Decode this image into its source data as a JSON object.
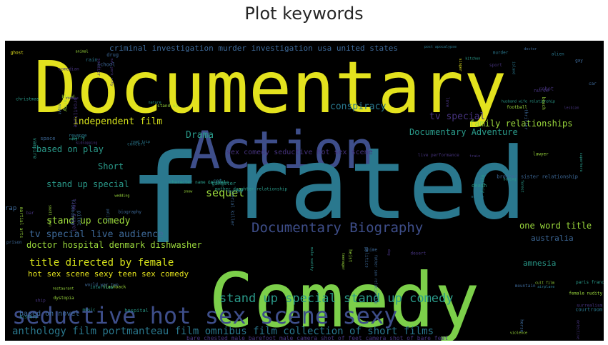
{
  "title": "Plot keywords",
  "words": [
    {
      "text": "Documentary",
      "color": "#e3e21e"
    },
    {
      "text": "Action",
      "color": "#3e4e8a"
    },
    {
      "text": "Comedy",
      "color": "#7ccf4a"
    },
    {
      "text": "rated",
      "color": "#2a788e"
    },
    {
      "text": "f",
      "color": "#2a788e"
    },
    {
      "text": "seductive hot sex scene sexy",
      "color": "#3e4e8a"
    },
    {
      "text": "anthology film portmanteau film omnibus film collection of short films",
      "color": "#2a788e"
    },
    {
      "text": "Documentary Biography",
      "color": "#3e4e8a"
    },
    {
      "text": "stand up special stand up comedy",
      "color": "#2a9a8a"
    },
    {
      "text": "title directed by female",
      "color": "#d6e21a"
    },
    {
      "text": "independent film",
      "color": "#d6e21a"
    },
    {
      "text": "sequel",
      "color": "#9bd93c"
    },
    {
      "text": "Drama",
      "color": "#2a9a8a"
    },
    {
      "text": "based on play",
      "color": "#2a9a8a"
    },
    {
      "text": "stand up special",
      "color": "#2a9a8a"
    },
    {
      "text": "stand up comedy",
      "color": "#9bd93c"
    },
    {
      "text": "tv special live audience",
      "color": "#3e6a9a"
    },
    {
      "text": "doctor hospital denmark dishwasher",
      "color": "#9bd93c"
    },
    {
      "text": "hot sex scene sexy teen sex comedy",
      "color": "#e3e21e"
    },
    {
      "text": "based on novel",
      "color": "#3e6a9a"
    },
    {
      "text": "Short",
      "color": "#2a9a8a"
    },
    {
      "text": "conspiracy",
      "color": "#2a788e"
    },
    {
      "text": "tv special",
      "color": "#46337e"
    },
    {
      "text": "family relationships",
      "color": "#9bd93c"
    },
    {
      "text": "Documentary Adventure",
      "color": "#2a9a8a"
    },
    {
      "text": "sex comedy seductive hot sex scene",
      "color": "#46337e"
    },
    {
      "text": "one word title",
      "color": "#9bd93c"
    },
    {
      "text": "australia",
      "color": "#3e6a9a"
    },
    {
      "text": "amnesia",
      "color": "#2a9a8a"
    },
    {
      "text": "criminal investigation murder investigation usa united states",
      "color": "#3e6a9a"
    },
    {
      "text": "rap",
      "color": "#3e6a9a"
    },
    {
      "text": "bare chested male barefoot male camera shot of feet camera shot of bare feet",
      "color": "#46337e"
    },
    {
      "text": "prison",
      "color": "#3e6a9a"
    },
    {
      "text": "paris france",
      "color": "#2a9a8a"
    },
    {
      "text": "live performance",
      "color": "#46337e"
    },
    {
      "text": "character name in title",
      "color": "#2a9a8a"
    },
    {
      "text": "friendship",
      "color": "#3e6a9a"
    },
    {
      "text": "flashback",
      "color": "#9bd93c"
    },
    {
      "text": "murder",
      "color": "#2a788e"
    },
    {
      "text": "love",
      "color": "#46337e"
    },
    {
      "text": "death",
      "color": "#2a9a8a"
    },
    {
      "text": "violence",
      "color": "#9bd93c"
    },
    {
      "text": "father son relationship",
      "color": "#3e6a9a"
    },
    {
      "text": "mother daughter relationship",
      "color": "#2a9a8a"
    },
    {
      "text": "new york city",
      "color": "#46337e"
    },
    {
      "text": "blood",
      "color": "#9bd93c"
    },
    {
      "text": "revenge",
      "color": "#2a788e"
    },
    {
      "text": "police",
      "color": "#3e6a9a"
    },
    {
      "text": "music",
      "color": "#2a9a8a"
    },
    {
      "text": "singer",
      "color": "#e3e21e"
    },
    {
      "text": "husband wife relationship",
      "color": "#2a9a8a"
    },
    {
      "text": "brother sister relationship",
      "color": "#3e6a9a"
    },
    {
      "text": "surrealism",
      "color": "#46337e"
    },
    {
      "text": "teenager",
      "color": "#9bd93c"
    },
    {
      "text": "dancing",
      "color": "#2a788e"
    },
    {
      "text": "school",
      "color": "#3e6a9a"
    },
    {
      "text": "christmas",
      "color": "#2a9a8a"
    },
    {
      "text": "kidnapping",
      "color": "#46337e"
    },
    {
      "text": "wedding",
      "color": "#9bd93c"
    },
    {
      "text": "interview",
      "color": "#2a9a8a"
    },
    {
      "text": "gay",
      "color": "#3e6a9a"
    },
    {
      "text": "lesbian",
      "color": "#46337e"
    },
    {
      "text": "nudity",
      "color": "#2a788e"
    },
    {
      "text": "female nudity",
      "color": "#9bd93c"
    },
    {
      "text": "male nudity",
      "color": "#2a9a8a"
    },
    {
      "text": "serial killer",
      "color": "#3e6a9a"
    },
    {
      "text": "ghost",
      "color": "#e3e21e"
    },
    {
      "text": "zombie",
      "color": "#46337e"
    },
    {
      "text": "vampire",
      "color": "#2a9a8a"
    },
    {
      "text": "martial arts",
      "color": "#9bd93c"
    },
    {
      "text": "world war two",
      "color": "#3e6a9a"
    },
    {
      "text": "alien",
      "color": "#2a788e"
    },
    {
      "text": "robot",
      "color": "#46337e"
    },
    {
      "text": "superhero",
      "color": "#2a9a8a"
    },
    {
      "text": "cult film",
      "color": "#9bd93c"
    },
    {
      "text": "anime",
      "color": "#3e6a9a"
    },
    {
      "text": "cartoon",
      "color": "#2a9a8a"
    },
    {
      "text": "comedian",
      "color": "#46337e"
    },
    {
      "text": "stand up",
      "color": "#9bd93c"
    },
    {
      "text": "concert",
      "color": "#2a788e"
    },
    {
      "text": "biography",
      "color": "#3e6a9a"
    },
    {
      "text": "history",
      "color": "#2a9a8a"
    },
    {
      "text": "sport",
      "color": "#46337e"
    },
    {
      "text": "football",
      "color": "#9bd93c"
    },
    {
      "text": "boxing",
      "color": "#2a9a8a"
    },
    {
      "text": "horse",
      "color": "#3e6a9a"
    },
    {
      "text": "dog",
      "color": "#46337e"
    },
    {
      "text": "cat",
      "color": "#2a788e"
    },
    {
      "text": "animal",
      "color": "#9bd93c"
    },
    {
      "text": "nature",
      "color": "#2a9a8a"
    },
    {
      "text": "space",
      "color": "#3e6a9a"
    },
    {
      "text": "time travel",
      "color": "#46337e"
    },
    {
      "text": "dystopia",
      "color": "#9bd93c"
    },
    {
      "text": "post apocalypse",
      "color": "#2a788e"
    },
    {
      "text": "thriller",
      "color": "#3e6a9a"
    },
    {
      "text": "mystery",
      "color": "#2a9a8a"
    },
    {
      "text": "detective",
      "color": "#46337e"
    },
    {
      "text": "heist",
      "color": "#9bd93c"
    },
    {
      "text": "gangster",
      "color": "#2a9a8a"
    },
    {
      "text": "drug",
      "color": "#3e6a9a"
    },
    {
      "text": "prostitute",
      "color": "#46337e"
    },
    {
      "text": "road trip",
      "color": "#2a788e"
    },
    {
      "text": "small town",
      "color": "#9bd93c"
    },
    {
      "text": "hospital",
      "color": "#2a9a8a"
    },
    {
      "text": "doctor",
      "color": "#3e6a9a"
    },
    {
      "text": "nurse",
      "color": "#46337e"
    },
    {
      "text": "lawyer",
      "color": "#9bd93c"
    },
    {
      "text": "courtroom",
      "color": "#2a788e"
    },
    {
      "text": "politics",
      "color": "#3e6a9a"
    },
    {
      "text": "war",
      "color": "#2a9a8a"
    },
    {
      "text": "soldier",
      "color": "#46337e"
    },
    {
      "text": "army",
      "color": "#9bd93c"
    },
    {
      "text": "navy",
      "color": "#2a9a8a"
    },
    {
      "text": "pilot",
      "color": "#3e6a9a"
    },
    {
      "text": "ship",
      "color": "#46337e"
    },
    {
      "text": "island",
      "color": "#2a788e"
    },
    {
      "text": "beach",
      "color": "#9bd93c"
    },
    {
      "text": "forest",
      "color": "#2a9a8a"
    },
    {
      "text": "mountain",
      "color": "#3e6a9a"
    },
    {
      "text": "desert",
      "color": "#46337e"
    },
    {
      "text": "snow",
      "color": "#9bd93c"
    },
    {
      "text": "rain",
      "color": "#2a788e"
    },
    {
      "text": "night",
      "color": "#3e6a9a"
    },
    {
      "text": "party",
      "color": "#2a9a8a"
    },
    {
      "text": "bar",
      "color": "#46337e"
    },
    {
      "text": "restaurant",
      "color": "#9bd93c"
    },
    {
      "text": "kitchen",
      "color": "#2a9a8a"
    },
    {
      "text": "car",
      "color": "#3e6a9a"
    },
    {
      "text": "train",
      "color": "#46337e"
    },
    {
      "text": "airplane",
      "color": "#2a788e"
    }
  ]
}
